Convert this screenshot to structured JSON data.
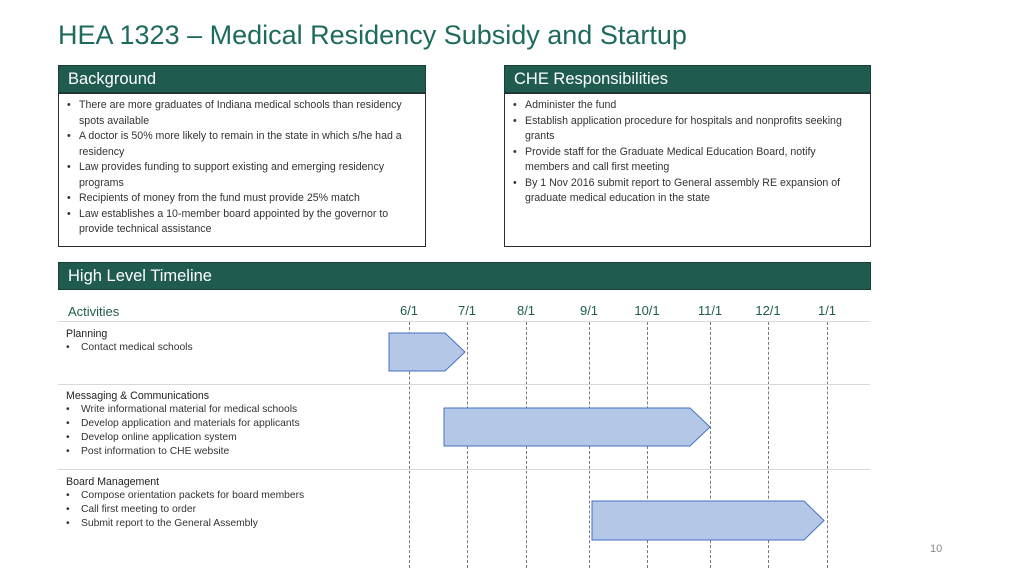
{
  "title": "HEA 1323 – Medical Residency Subsidy and Startup",
  "background": {
    "heading": "Background",
    "items": [
      "There are more graduates of Indiana medical schools than residency spots available",
      "A doctor is 50% more likely to remain in the state in which s/he had a residency",
      "Law provides funding to support existing and emerging residency programs",
      "Recipients of money from the fund must provide 25% match",
      "Law establishes a 10-member board appointed by the governor to provide technical assistance"
    ]
  },
  "che": {
    "heading": "CHE Responsibilities",
    "items": [
      "Administer the fund",
      "Establish application procedure for hospitals and nonprofits seeking grants",
      "Provide staff for the Graduate Medical Education Board, notify members and call first meeting",
      "By 1 Nov 2016 submit report to General assembly RE expansion of graduate medical education in the state"
    ]
  },
  "timeline": {
    "heading": "High Level Timeline",
    "activities_label": "Activities",
    "dates": [
      "6/1",
      "7/1",
      "8/1",
      "9/1",
      "10/1",
      "11/1",
      "12/1",
      "1/1"
    ],
    "groups": [
      {
        "title": "Planning",
        "items": [
          "Contact medical schools"
        ],
        "bar": {
          "start": "6/1",
          "end": "7/1"
        }
      },
      {
        "title": "Messaging & Communications",
        "items": [
          "Write informational material for medical schools",
          "Develop application and materials for applicants",
          "Develop online application system",
          "Post information to CHE website"
        ],
        "bar": {
          "start": "7/1",
          "end": "11/1"
        }
      },
      {
        "title": "Board Management",
        "items": [
          "Compose orientation packets for board members",
          "Call first meeting to order",
          "Submit report to the General Assembly"
        ],
        "bar": {
          "start": "9/1",
          "end": "1/1"
        }
      }
    ],
    "bar_color": "#b4c7e7",
    "bar_stroke": "#4472c4"
  },
  "page_number": "10"
}
